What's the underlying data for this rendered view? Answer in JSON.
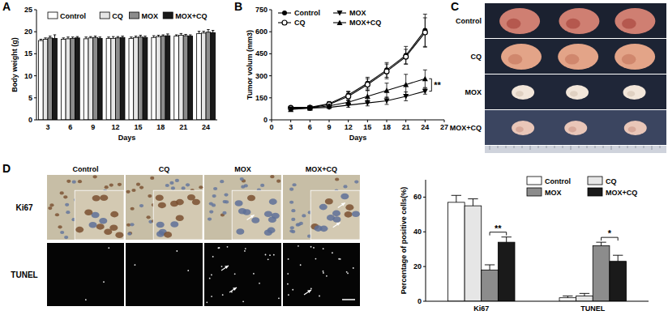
{
  "chart_data": [
    {
      "type": "bar",
      "panel": "A",
      "y_label": "Body weight (g)",
      "x_label": "Days",
      "categories": [
        "3",
        "6",
        "9",
        "12",
        "15",
        "18",
        "21",
        "24"
      ],
      "series": [
        {
          "name": "Control",
          "color": "#ffffff",
          "values": [
            18.0,
            18.3,
            18.4,
            18.5,
            18.5,
            18.7,
            19.0,
            19.6
          ],
          "errors": [
            0.3,
            0.3,
            0.4,
            0.3,
            0.3,
            0.4,
            0.3,
            0.5
          ]
        },
        {
          "name": "CQ",
          "color": "#e6e6e6",
          "values": [
            18.3,
            18.4,
            18.6,
            18.5,
            18.7,
            18.9,
            19.2,
            19.7
          ],
          "errors": [
            0.3,
            0.4,
            0.3,
            0.4,
            0.3,
            0.3,
            0.4,
            0.4
          ]
        },
        {
          "name": "MOX",
          "color": "#8c8c8c",
          "values": [
            18.6,
            18.5,
            18.7,
            18.6,
            18.8,
            19.0,
            19.1,
            19.9
          ],
          "errors": [
            0.4,
            0.3,
            0.3,
            0.3,
            0.4,
            0.3,
            0.3,
            0.6
          ]
        },
        {
          "name": "MOX+CQ",
          "color": "#1a1a1a",
          "values": [
            18.5,
            18.6,
            18.5,
            18.7,
            18.7,
            19.1,
            19.0,
            19.8
          ],
          "errors": [
            0.8,
            0.3,
            0.3,
            0.3,
            0.3,
            0.4,
            0.3,
            0.5
          ]
        }
      ],
      "ylim": [
        0,
        25
      ],
      "yticks": [
        0,
        5,
        10,
        15,
        20,
        25
      ],
      "grid": false,
      "legend": "top"
    },
    {
      "type": "line",
      "panel": "B",
      "y_label": "Tumor volum (mm3)",
      "x_label": "Days",
      "x": [
        3,
        6,
        9,
        12,
        15,
        18,
        21,
        24
      ],
      "series": [
        {
          "name": "Control",
          "color": "#000000",
          "marker": "circle",
          "values": [
            85,
            85,
            110,
            170,
            250,
            340,
            440,
            610
          ],
          "errors": [
            10,
            10,
            15,
            25,
            40,
            50,
            60,
            110
          ]
        },
        {
          "name": "CQ",
          "color": "#000000",
          "marker": "open-circle",
          "values": [
            80,
            82,
            105,
            160,
            240,
            330,
            430,
            595
          ],
          "errors": [
            10,
            10,
            15,
            30,
            40,
            50,
            50,
            100
          ]
        },
        {
          "name": "MOX",
          "color": "#000000",
          "marker": "triangle-down",
          "values": [
            75,
            80,
            85,
            100,
            115,
            130,
            160,
            195
          ],
          "errors": [
            8,
            8,
            10,
            15,
            20,
            25,
            30,
            20
          ]
        },
        {
          "name": "MOX+CQ",
          "color": "#000000",
          "marker": "triangle-up",
          "values": [
            70,
            80,
            95,
            120,
            160,
            200,
            240,
            280
          ],
          "errors": [
            8,
            8,
            12,
            15,
            40,
            50,
            70,
            60
          ]
        }
      ],
      "xlim": [
        0,
        27
      ],
      "xticks": [
        0,
        3,
        6,
        9,
        12,
        15,
        18,
        21,
        24,
        27
      ],
      "ylim": [
        0,
        750
      ],
      "yticks": [
        0,
        150,
        300,
        450,
        600,
        750
      ],
      "annotations": [
        {
          "text": "**",
          "x": 24,
          "series": [
            2,
            3
          ]
        }
      ],
      "grid": false,
      "legend": "top-left"
    },
    {
      "type": "bar",
      "y_label": "Percentage of positive cells(%)",
      "categories": [
        "Ki67",
        "TUNEL"
      ],
      "series": [
        {
          "name": "Control",
          "color": "#ffffff",
          "values": [
            57,
            2
          ],
          "errors": [
            4,
            1
          ]
        },
        {
          "name": "CQ",
          "color": "#e6e6e6",
          "values": [
            55,
            3
          ],
          "errors": [
            4,
            1.5
          ]
        },
        {
          "name": "MOX",
          "color": "#8c8c8c",
          "values": [
            18,
            32
          ],
          "errors": [
            3,
            2
          ]
        },
        {
          "name": "MOX+CQ",
          "color": "#1a1a1a",
          "values": [
            34,
            23
          ],
          "errors": [
            3,
            3.5
          ]
        }
      ],
      "ylim": [
        0,
        70
      ],
      "yticks": [
        0,
        20,
        40,
        60
      ],
      "annotations": [
        {
          "text": "**",
          "category": 0,
          "series": [
            2,
            3
          ]
        },
        {
          "text": "*",
          "category": 1,
          "series": [
            2,
            3
          ]
        }
      ],
      "grid": false,
      "legend": "top-right"
    }
  ],
  "images": {
    "C": {
      "panel": "C",
      "rows": [
        "Control",
        "CQ",
        "MOX",
        "MOX+CQ"
      ]
    },
    "D": {
      "panel": "D",
      "columns": [
        "Control",
        "CQ",
        "MOX",
        "MOX+CQ"
      ],
      "rows": [
        "Ki67",
        "TUNEL"
      ]
    }
  }
}
